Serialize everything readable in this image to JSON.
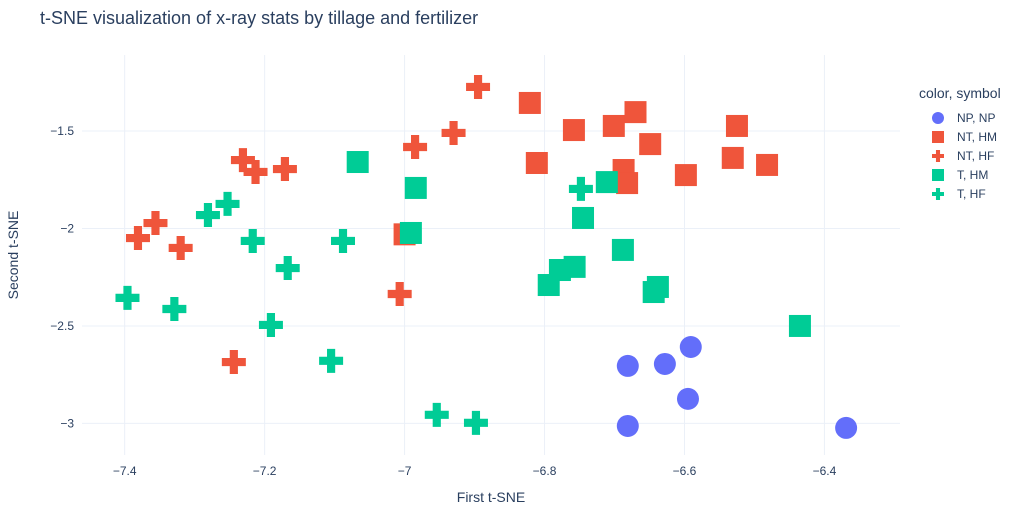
{
  "chart_data": {
    "type": "scatter",
    "title": "t-SNE visualization of x-ray stats by tillage and fertilizer",
    "xlabel": "First t-SNE",
    "ylabel": "Second t-SNE",
    "xlim": [
      -7.461,
      -6.292
    ],
    "ylim": [
      -3.162,
      -1.11
    ],
    "xticks": [
      -7.4,
      -7.2,
      -7,
      -6.8,
      -6.6,
      -6.4
    ],
    "xtick_labels": [
      "−7.4",
      "−7.2",
      "−7",
      "−6.8",
      "−6.6",
      "−6.4"
    ],
    "yticks": [
      -1.5,
      -2,
      -2.5,
      -3
    ],
    "ytick_labels": [
      "−1.5",
      "−2",
      "−2.5",
      "−3"
    ],
    "grid": true,
    "legend_title": "color, symbol",
    "legend_position": "top-right",
    "series": [
      {
        "name": "NP, NP",
        "color": "#636efa",
        "symbol": "circle",
        "x": [
          -6.681,
          -6.628,
          -6.591,
          -6.595,
          -6.681,
          -6.369
        ],
        "y": [
          -2.705,
          -2.695,
          -2.608,
          -2.874,
          -3.013,
          -3.023
        ]
      },
      {
        "name": "NT, HM",
        "color": "#ef553b",
        "symbol": "square",
        "x": [
          -6.821,
          -6.811,
          -6.758,
          -6.701,
          -6.67,
          -6.649,
          -6.687,
          -6.682,
          -6.598,
          -6.525,
          -6.531,
          -6.482,
          -7.0
        ],
        "y": [
          -1.356,
          -1.664,
          -1.495,
          -1.474,
          -1.403,
          -1.567,
          -1.7,
          -1.767,
          -1.726,
          -1.474,
          -1.638,
          -1.674,
          -2.03
        ]
      },
      {
        "name": "NT, HF",
        "color": "#ef553b",
        "symbol": "cross",
        "x": [
          -6.895,
          -6.93,
          -6.985,
          -7.231,
          -7.213,
          -7.171,
          -7.356,
          -7.381,
          -7.32,
          -7.007,
          -7.244
        ],
        "y": [
          -1.274,
          -1.51,
          -1.582,
          -1.649,
          -1.71,
          -1.695,
          -1.972,
          -2.049,
          -2.1,
          -2.336,
          -2.685
        ]
      },
      {
        "name": "T, HM",
        "color": "#00cc96",
        "symbol": "square",
        "x": [
          -7.067,
          -6.984,
          -6.991,
          -6.745,
          -6.711,
          -6.688,
          -6.757,
          -6.778,
          -6.794,
          -6.644,
          -6.638,
          -6.435
        ],
        "y": [
          -1.659,
          -1.792,
          -2.023,
          -1.946,
          -1.762,
          -2.11,
          -2.197,
          -2.213,
          -2.29,
          -2.326,
          -2.3,
          -2.5
        ]
      },
      {
        "name": "T, HF",
        "color": "#00cc96",
        "symbol": "cross",
        "x": [
          -6.748,
          -7.253,
          -7.281,
          -7.217,
          -7.088,
          -7.167,
          -7.396,
          -7.329,
          -7.191,
          -7.105,
          -6.954,
          -6.898
        ],
        "y": [
          -1.797,
          -1.874,
          -1.931,
          -2.064,
          -2.064,
          -2.203,
          -2.356,
          -2.413,
          -2.495,
          -2.679,
          -2.956,
          -2.997
        ]
      }
    ]
  }
}
